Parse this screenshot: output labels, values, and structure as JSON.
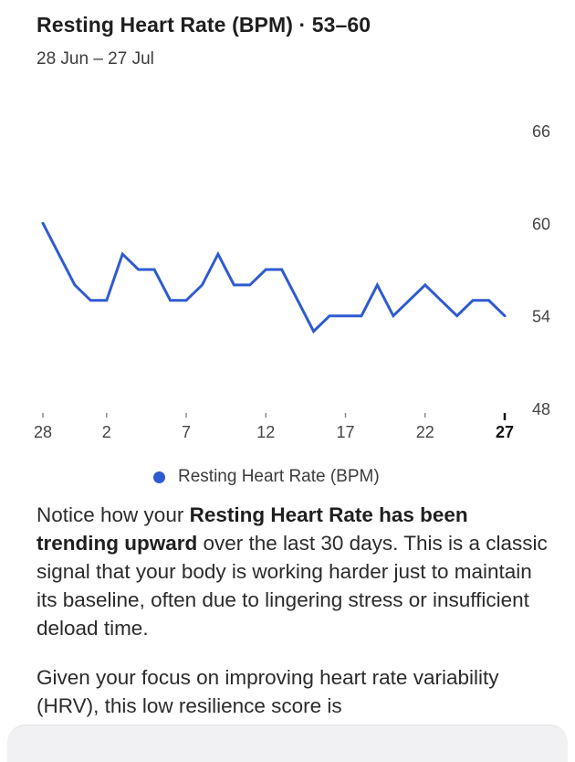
{
  "header": {
    "title": "Resting Heart Rate (BPM) · 53–60",
    "subtitle": "28 Jun – 27 Jul"
  },
  "chart_data": {
    "type": "line",
    "title": "Resting Heart Rate (BPM) · 53–60",
    "subtitle": "28 Jun – 27 Jul",
    "xlabel": "",
    "ylabel": "",
    "x": [
      "28",
      "29",
      "30",
      "1",
      "2",
      "3",
      "4",
      "5",
      "6",
      "7",
      "8",
      "9",
      "10",
      "11",
      "12",
      "13",
      "14",
      "15",
      "16",
      "17",
      "18",
      "19",
      "20",
      "21",
      "22",
      "23",
      "24",
      "25",
      "26",
      "27"
    ],
    "xtick_labels": [
      "28",
      "2",
      "7",
      "12",
      "17",
      "22",
      "27"
    ],
    "highlighted_tick": "27",
    "yticks": [
      66,
      60,
      54,
      48
    ],
    "ylim": [
      48,
      66
    ],
    "series": [
      {
        "name": "Resting Heart Rate (BPM)",
        "color": "#2F5BD0",
        "values": [
          60,
          58,
          56,
          55,
          55,
          58,
          57,
          57,
          55,
          55,
          56,
          58,
          56,
          56,
          57,
          57,
          55,
          53,
          54,
          54,
          54,
          56,
          54,
          55,
          56,
          55,
          54,
          55,
          55,
          54
        ]
      }
    ],
    "grid": false,
    "legend_position": "bottom-center"
  },
  "legend": {
    "label": "Resting Heart Rate (BPM)",
    "color": "#2F5BD0"
  },
  "body": {
    "p1_a": "Notice how your ",
    "p1_bold": "Resting Heart Rate has been trending upward",
    "p1_b": " over the last 30 days. This is a classic signal that your body is working harder just to maintain its baseline, often due to lingering stress or insufficient deload time.",
    "p2": "Given your focus on improving heart rate variability (HRV), this low resilience score is"
  }
}
